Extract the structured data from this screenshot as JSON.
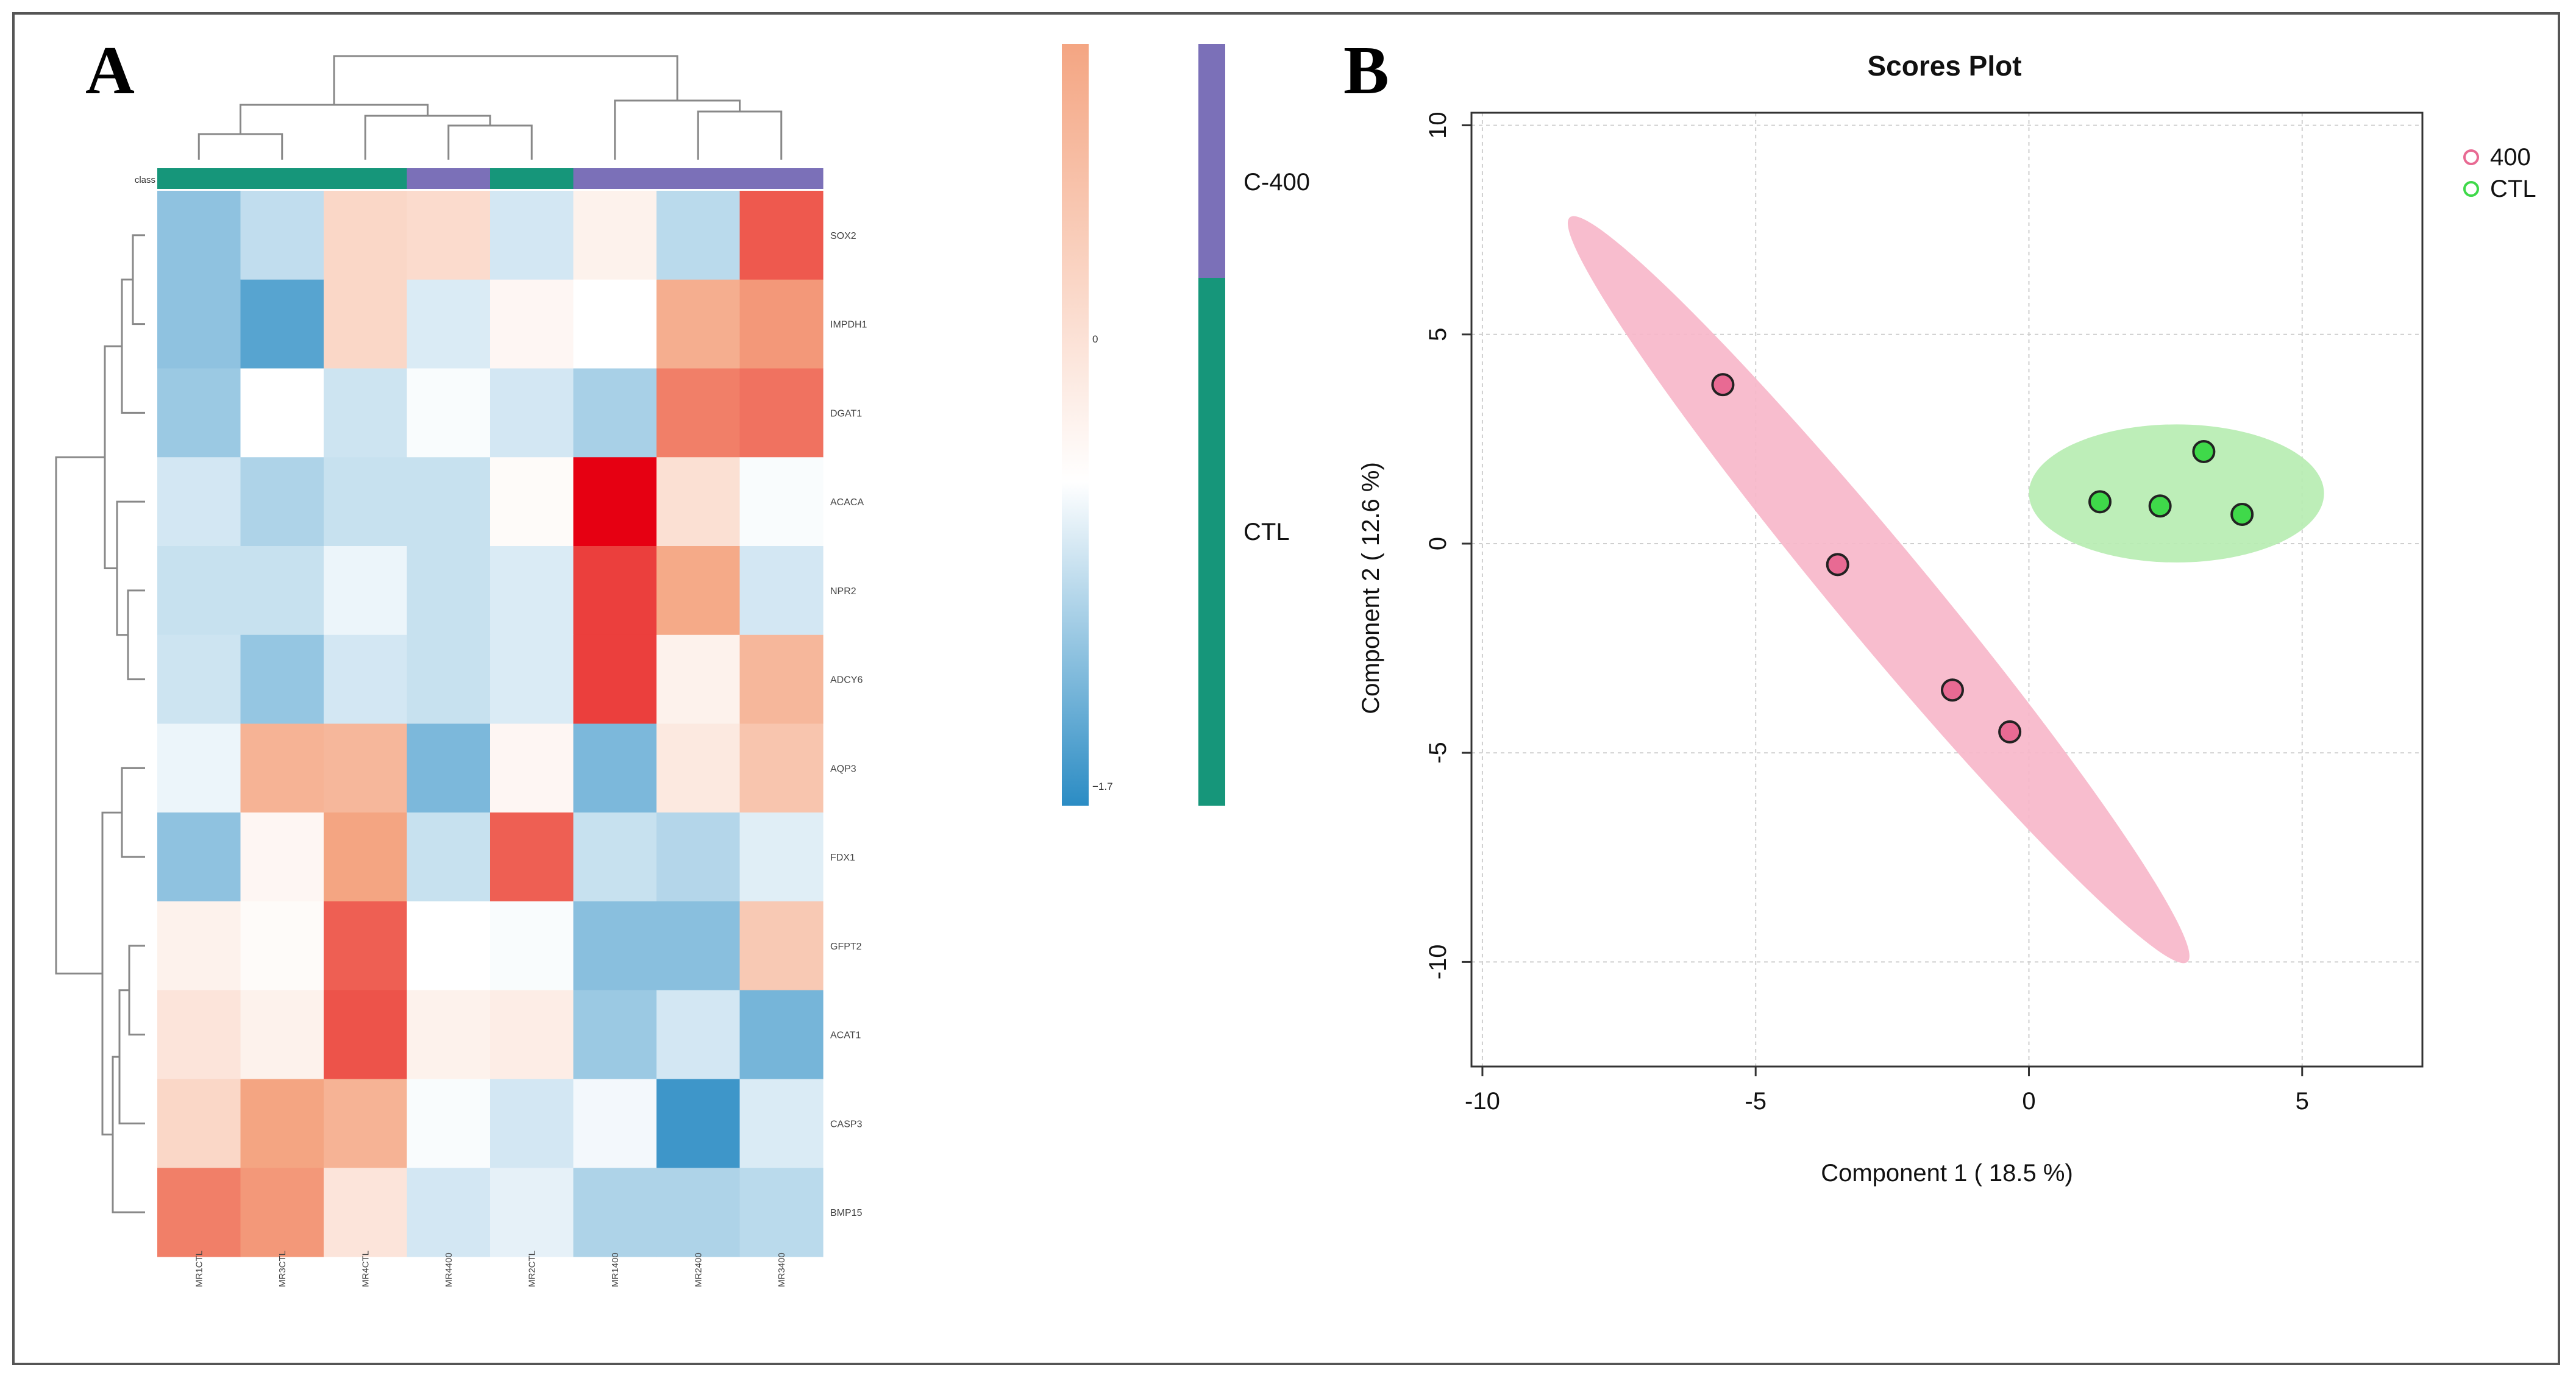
{
  "figure": {
    "panel_a_label": "A",
    "panel_b_label": "B"
  },
  "colors": {
    "c400": "#7b70b8",
    "ctl": "#16967a",
    "pink_ellipse": "#f7b6c9",
    "green_ellipse": "#b6ecb0",
    "pink_point": "#e86a93",
    "green_point": "#3fd94a"
  },
  "chart_data": [
    {
      "type": "heatmap",
      "class_label": "class",
      "columns": [
        "MR1CTL",
        "MR3CTL",
        "MR4CTL",
        "MR4400",
        "MR2CTL",
        "MR1400",
        "MR2400",
        "MR3400"
      ],
      "column_classes": [
        "CTL",
        "CTL",
        "CTL",
        "400",
        "CTL",
        "400",
        "400",
        "400"
      ],
      "rows": [
        "SOX2",
        "IMPDH1",
        "DGAT1",
        "ACACA",
        "NPR2",
        "ADCY6",
        "AQP3",
        "FDX1",
        "GFPT2",
        "ACAT1",
        "CASP3",
        "BMP15"
      ],
      "values": [
        [
          -0.9,
          -0.5,
          0.45,
          0.4,
          -0.35,
          0.15,
          -0.55,
          1.6
        ],
        [
          -0.9,
          -1.35,
          0.45,
          -0.3,
          0.1,
          0.0,
          0.9,
          1.1
        ],
        [
          -0.8,
          0.0,
          -0.4,
          -0.05,
          -0.35,
          -0.7,
          1.3,
          1.4
        ],
        [
          -0.35,
          -0.65,
          -0.45,
          -0.45,
          0.05,
          2.3,
          0.35,
          -0.05
        ],
        [
          -0.45,
          -0.45,
          -0.15,
          -0.45,
          -0.3,
          1.8,
          0.95,
          -0.35
        ],
        [
          -0.4,
          -0.85,
          -0.35,
          -0.45,
          -0.3,
          1.8,
          0.15,
          0.8
        ],
        [
          -0.15,
          0.85,
          0.8,
          -1.05,
          0.1,
          -1.05,
          0.25,
          0.65
        ],
        [
          -0.9,
          0.1,
          1.0,
          -0.45,
          1.55,
          -0.45,
          -0.6,
          -0.25
        ],
        [
          0.15,
          0.05,
          1.55,
          0.0,
          -0.05,
          -0.95,
          -0.95,
          0.6
        ],
        [
          0.3,
          0.15,
          1.65,
          0.15,
          0.2,
          -0.8,
          -0.35,
          -1.1
        ],
        [
          0.45,
          1.0,
          0.85,
          -0.05,
          -0.35,
          -0.1,
          -1.55,
          -0.3
        ],
        [
          1.3,
          1.1,
          0.3,
          -0.35,
          -0.2,
          -0.65,
          -0.65,
          -0.55
        ]
      ],
      "colorbar": {
        "max": 2.3,
        "mid": 0,
        "min": -1.7,
        "mid_label": "0",
        "min_label": "−1.7"
      },
      "class_legend": [
        {
          "label": "C-400",
          "color": "#7b70b8"
        },
        {
          "label": "CTL",
          "color": "#16967a"
        }
      ]
    },
    {
      "type": "scatter",
      "title": "Scores Plot",
      "xlabel": "Component 1 ( 18.5 %)",
      "ylabel": "Component 2 ( 12.6 %)",
      "xlim": [
        -10.2,
        7.2
      ],
      "ylim": [
        -12.5,
        10.3
      ],
      "xticks": [
        -10,
        -5,
        0,
        5
      ],
      "yticks": [
        -10,
        -5,
        0,
        5,
        10
      ],
      "xtick_labels": [
        "-10",
        "-5",
        "0",
        "5"
      ],
      "ytick_labels": [
        "-10",
        "-5",
        "0",
        "5",
        "10"
      ],
      "grid": true,
      "legend_position": "top-right",
      "series": [
        {
          "name": "400",
          "points": [
            [
              -5.6,
              3.8
            ],
            [
              -3.5,
              -0.5
            ],
            [
              -1.4,
              -3.5
            ],
            [
              -0.35,
              -4.5
            ]
          ],
          "ellipse": {
            "from": [
              -8.4,
              7.8
            ],
            "to": [
              2.9,
              -10.0
            ],
            "halfwidth": 0.85
          }
        },
        {
          "name": "CTL",
          "points": [
            [
              1.3,
              1.0
            ],
            [
              2.4,
              0.9
            ],
            [
              3.2,
              2.2
            ],
            [
              3.9,
              0.7
            ]
          ],
          "ellipse": {
            "center": [
              2.7,
              1.2
            ],
            "rx": 2.7,
            "ry": 1.65
          }
        }
      ]
    }
  ]
}
